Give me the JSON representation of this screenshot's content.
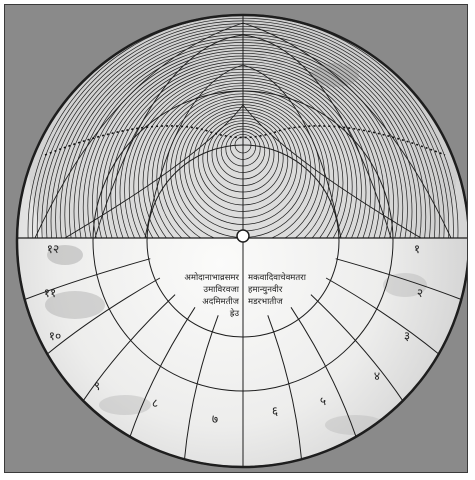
{
  "figure": {
    "subject": "astrolabe-plate",
    "colors": {
      "background": "#8a8a8a",
      "frame_border": "#3a3a3a",
      "metal_light": "#f2f2f0",
      "metal_shadow": "#bfbfbf",
      "engraving": "#1e1e1e",
      "ink": "#222222"
    },
    "labels": {
      "hour_numerals": [
        "१२",
        "११",
        "१०",
        "९",
        "८",
        "७",
        "६",
        "५",
        "४",
        "३",
        "२",
        "१"
      ],
      "inscription_left": [
        "अमोदानाभाव्रसमर",
        "उमाविरवजा",
        "अदमिमतीज",
        "ह्रेउ"
      ],
      "inscription_right": [
        "मकवादिवाचेवमतरा",
        "हमान्युनवीर",
        "मडरभातीज"
      ]
    }
  }
}
